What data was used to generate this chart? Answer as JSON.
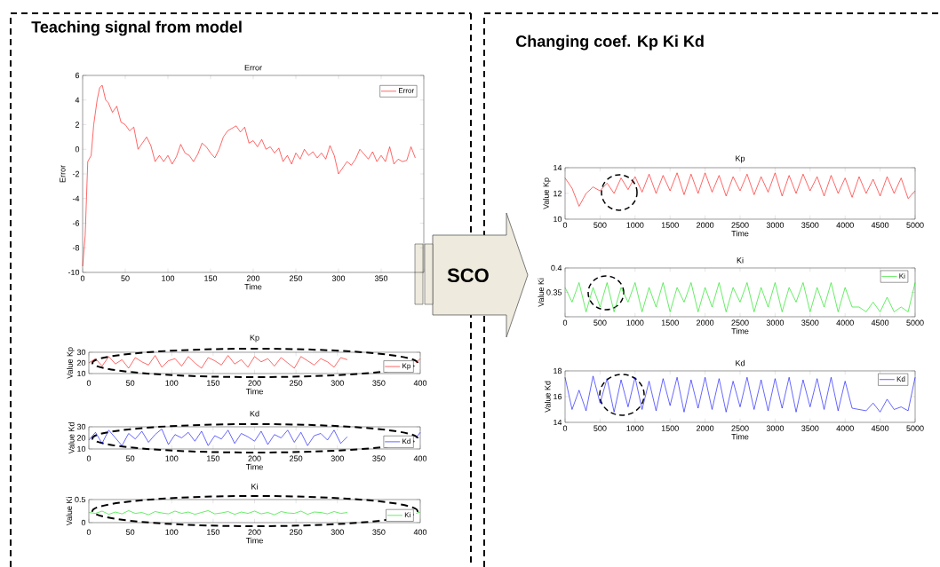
{
  "chart_data": [
    {
      "type": "line",
      "title": "Error",
      "xlabel": "Time",
      "ylabel": "Error",
      "annotations": [
        "Teaching signal from model",
        "SCO"
      ],
      "xlim": [
        0,
        400
      ],
      "ylim": [
        -10,
        6
      ],
      "xticks": [
        0,
        50,
        100,
        150,
        200,
        250,
        300,
        350,
        {
          "value": 400,
          "label": null
        }
      ],
      "yticks": [
        -10,
        -8,
        -6,
        -4,
        -2,
        0,
        2,
        4,
        6
      ],
      "legend": "top right",
      "series": [
        {
          "name": "Error",
          "color": "#ff0000",
          "x": [
            0,
            3,
            6,
            10,
            13,
            17,
            20,
            23,
            27,
            30,
            35,
            40,
            45,
            50,
            55,
            60,
            65,
            70,
            75,
            80,
            85,
            90,
            95,
            100,
            105,
            110,
            115,
            120,
            125,
            130,
            135,
            140,
            145,
            150,
            155,
            160,
            165,
            170,
            175,
            180,
            185,
            190,
            195,
            200,
            205,
            210,
            215,
            220,
            225,
            230,
            235,
            240,
            245,
            250,
            255,
            260,
            265,
            270,
            275,
            280,
            285,
            290,
            295,
            300,
            305,
            310,
            315,
            320,
            325,
            330,
            335,
            340,
            345,
            350,
            355,
            360,
            365,
            370,
            375,
            380,
            385,
            390
          ],
          "values": [
            -9.5,
            -7,
            -1,
            -0.5,
            2,
            4,
            5,
            5.2,
            4,
            3.8,
            3,
            3.5,
            2.2,
            2,
            1.5,
            1.8,
            0,
            0.5,
            1,
            0.3,
            -1,
            -0.5,
            -1,
            -0.5,
            -1.2,
            -0.6,
            0.4,
            -0.3,
            -0.5,
            -1,
            -0.4,
            0.5,
            0.2,
            -0.3,
            -0.7,
            0,
            1,
            1.5,
            1.7,
            1.9,
            1.4,
            1.8,
            0.5,
            0.7,
            0.2,
            0.8,
            0,
            0.2,
            -0.3,
            0.1,
            -1,
            -0.5,
            -1.2,
            -0.3,
            -0.8,
            0,
            -0.5,
            -0.2,
            -0.7,
            -0.3,
            -0.8,
            0.3,
            -0.5,
            -2,
            -1.5,
            -1,
            -1.3,
            -0.8,
            0,
            -0.4,
            -0.8,
            -0.2,
            -1,
            -0.5,
            -1,
            0.2,
            -1.2,
            -0.8,
            -1,
            -0.9,
            0.2,
            -0.7
          ]
        }
      ]
    },
    {
      "type": "line",
      "title": "Kp",
      "xlabel": "Time",
      "ylabel": "Value Kp",
      "xlim": [
        0,
        400
      ],
      "ylim": [
        10,
        30
      ],
      "xticks": [
        0,
        50,
        100,
        150,
        200,
        250,
        300,
        350,
        400
      ],
      "yticks": [
        10,
        20,
        30
      ],
      "legend": "bottom right",
      "series": [
        {
          "name": "Kp",
          "color": "#ff0000",
          "x": [
            0,
            8,
            16,
            24,
            32,
            40,
            48,
            56,
            64,
            72,
            80,
            88,
            96,
            104,
            112,
            120,
            128,
            136,
            144,
            152,
            160,
            168,
            176,
            184,
            192,
            200,
            208,
            216,
            224,
            232,
            240,
            248,
            256,
            264,
            272,
            280,
            288,
            296,
            304,
            312,
            355,
            395,
            400
          ],
          "values": [
            20,
            24,
            17,
            26,
            19,
            23,
            15,
            25,
            21,
            18,
            27,
            16,
            22,
            24,
            17,
            26,
            20,
            15,
            25,
            22,
            18,
            27,
            19,
            23,
            16,
            26,
            21,
            24,
            17,
            25,
            20,
            15,
            26,
            22,
            18,
            24,
            21,
            16,
            25,
            23,
            null,
            20,
            24
          ]
        }
      ]
    },
    {
      "type": "line",
      "title": "Kd",
      "xlabel": "Time",
      "ylabel": "Value Kd",
      "xlim": [
        0,
        400
      ],
      "ylim": [
        10,
        30
      ],
      "xticks": [
        0,
        50,
        100,
        150,
        200,
        250,
        300,
        350,
        400
      ],
      "yticks": [
        10,
        20,
        30
      ],
      "legend": "bottom right",
      "series": [
        {
          "name": "Kd",
          "color": "#0000ff",
          "x": [
            0,
            8,
            16,
            24,
            32,
            40,
            48,
            56,
            64,
            72,
            80,
            88,
            96,
            104,
            112,
            120,
            128,
            136,
            144,
            152,
            160,
            168,
            176,
            184,
            192,
            200,
            208,
            216,
            224,
            232,
            240,
            248,
            256,
            264,
            272,
            280,
            288,
            296,
            304,
            312,
            355,
            395,
            400
          ],
          "values": [
            18,
            25,
            15,
            27,
            20,
            13,
            24,
            19,
            26,
            16,
            23,
            28,
            14,
            23,
            20,
            25,
            17,
            26,
            13,
            22,
            19,
            27,
            15,
            24,
            21,
            17,
            26,
            14,
            23,
            20,
            27,
            16,
            25,
            13,
            22,
            24,
            18,
            27,
            15,
            21,
            null,
            20,
            25
          ]
        }
      ]
    },
    {
      "type": "line",
      "title": "Ki",
      "xlabel": "Time",
      "ylabel": "Value Ki",
      "xlim": [
        0,
        400
      ],
      "ylim": [
        0,
        0.5
      ],
      "xticks": [
        0,
        50,
        100,
        150,
        200,
        250,
        300,
        350,
        400
      ],
      "yticks": [
        0,
        0.5
      ],
      "legend": "bottom right",
      "series": [
        {
          "name": "Ki",
          "color": "#00e000",
          "x": [
            0,
            8,
            16,
            24,
            32,
            40,
            48,
            56,
            64,
            72,
            80,
            88,
            96,
            104,
            112,
            120,
            128,
            136,
            144,
            152,
            160,
            168,
            176,
            184,
            192,
            200,
            208,
            216,
            224,
            232,
            240,
            248,
            256,
            264,
            272,
            280,
            288,
            296,
            304,
            312,
            355,
            395,
            400
          ],
          "values": [
            0.22,
            0.2,
            0.25,
            0.18,
            0.23,
            0.19,
            0.26,
            0.2,
            0.22,
            0.17,
            0.24,
            0.21,
            0.19,
            0.25,
            0.2,
            0.23,
            0.18,
            0.22,
            0.26,
            0.19,
            0.21,
            0.24,
            0.18,
            0.23,
            0.2,
            0.25,
            0.19,
            0.22,
            0.17,
            0.24,
            0.21,
            0.2,
            0.25,
            0.18,
            0.23,
            0.22,
            0.19,
            0.24,
            0.2,
            0.22,
            null,
            0.2,
            0.23
          ]
        }
      ]
    },
    {
      "type": "line",
      "title": "Kp",
      "xlabel": "Time",
      "ylabel": "Value Kp",
      "annotations": [
        "Changing coef. Kp Ki Kd"
      ],
      "xlim": [
        0,
        5000
      ],
      "ylim": [
        10,
        14
      ],
      "xticks": [
        0,
        500,
        1000,
        1500,
        2000,
        2500,
        3000,
        3500,
        4000,
        4500,
        5000
      ],
      "yticks": [
        10,
        12,
        14
      ],
      "series": [
        {
          "color": "#ff0000",
          "x": [
            0,
            100,
            200,
            300,
            400,
            500,
            600,
            700,
            800,
            900,
            1000,
            1100,
            1200,
            1300,
            1400,
            1500,
            1600,
            1700,
            1800,
            1900,
            2000,
            2100,
            2200,
            2300,
            2400,
            2500,
            2600,
            2700,
            2800,
            2900,
            3000,
            3100,
            3200,
            3300,
            3400,
            3500,
            3600,
            3700,
            3800,
            3900,
            4000,
            4100,
            4200,
            4300,
            4400,
            4500,
            4600,
            4700,
            4800,
            4900,
            5000
          ],
          "values": [
            13.2,
            12.4,
            11,
            12,
            12.5,
            12.2,
            12.8,
            12,
            13.2,
            12.3,
            13.3,
            12.1,
            13.5,
            12,
            13.4,
            12.2,
            13.6,
            11.9,
            13.5,
            12,
            13.6,
            12.1,
            13.4,
            11.8,
            13.3,
            12.2,
            13.5,
            11.9,
            13.3,
            12.1,
            13.6,
            11.8,
            13.4,
            12,
            13.5,
            12.2,
            13.3,
            11.8,
            13.4,
            12,
            13.2,
            11.7,
            13.3,
            12,
            13.1,
            11.8,
            13.3,
            12,
            13.2,
            11.6,
            12.2
          ]
        }
      ]
    },
    {
      "type": "line",
      "title": "Ki",
      "xlabel": "Time",
      "ylabel": "Value Ki",
      "xlim": [
        0,
        5000
      ],
      "ylim": [
        0.3,
        0.4
      ],
      "xticks": [
        0,
        500,
        1000,
        1500,
        2000,
        2500,
        3000,
        3500,
        4000,
        4500,
        5000
      ],
      "yticks": [
        {
          "value": 0.3,
          "label": null
        },
        0.35,
        0.4
      ],
      "legend": "top right",
      "series": [
        {
          "name": "Ki",
          "color": "#00e000",
          "x": [
            0,
            100,
            200,
            300,
            400,
            500,
            600,
            700,
            800,
            900,
            1000,
            1100,
            1200,
            1300,
            1400,
            1500,
            1600,
            1700,
            1800,
            1900,
            2000,
            2100,
            2200,
            2300,
            2400,
            2500,
            2600,
            2700,
            2800,
            2900,
            3000,
            3100,
            3200,
            3300,
            3400,
            3500,
            3600,
            3700,
            3800,
            3900,
            4000,
            4100,
            4200,
            4300,
            4400,
            4500,
            4600,
            4700,
            4800,
            4900,
            5000
          ],
          "values": [
            0.36,
            0.33,
            0.37,
            0.31,
            0.36,
            0.32,
            0.37,
            0.31,
            0.36,
            0.33,
            0.37,
            0.31,
            0.36,
            0.32,
            0.37,
            0.31,
            0.36,
            0.33,
            0.37,
            0.31,
            0.36,
            0.32,
            0.37,
            0.31,
            0.36,
            0.33,
            0.37,
            0.31,
            0.36,
            0.32,
            0.37,
            0.31,
            0.36,
            0.33,
            0.37,
            0.31,
            0.36,
            0.32,
            0.37,
            0.31,
            0.36,
            0.32,
            0.32,
            0.31,
            0.33,
            0.31,
            0.34,
            0.31,
            0.32,
            0.31,
            0.37
          ]
        }
      ]
    },
    {
      "type": "line",
      "title": "Kd",
      "xlabel": "Time",
      "ylabel": "Value Kd",
      "xlim": [
        0,
        5000
      ],
      "ylim": [
        14,
        18
      ],
      "xticks": [
        0,
        500,
        1000,
        1500,
        2000,
        2500,
        3000,
        3500,
        4000,
        4500,
        5000
      ],
      "yticks": [
        14,
        16,
        18
      ],
      "legend": "top right",
      "series": [
        {
          "name": "Kd",
          "color": "#0000ff",
          "x": [
            0,
            100,
            200,
            300,
            400,
            500,
            600,
            700,
            800,
            900,
            1000,
            1100,
            1200,
            1300,
            1400,
            1500,
            1600,
            1700,
            1800,
            1900,
            2000,
            2100,
            2200,
            2300,
            2400,
            2500,
            2600,
            2700,
            2800,
            2900,
            3000,
            3100,
            3200,
            3300,
            3400,
            3500,
            3600,
            3700,
            3800,
            3900,
            4000,
            4100,
            4200,
            4300,
            4400,
            4500,
            4600,
            4700,
            4800,
            4900,
            5000
          ],
          "values": [
            17.5,
            15,
            16.5,
            14.9,
            17.6,
            15.5,
            17.4,
            14.8,
            17.3,
            15.2,
            17.5,
            15,
            17.2,
            14.9,
            17.4,
            15.3,
            17.5,
            14.8,
            17.3,
            15.1,
            17.5,
            15,
            17.4,
            14.8,
            17.2,
            15.2,
            17.5,
            15,
            17.3,
            14.9,
            17.4,
            15.1,
            17.5,
            14.8,
            17.3,
            15.2,
            17.4,
            15,
            17.5,
            14.9,
            17.2,
            15.1,
            15,
            14.9,
            15.5,
            14.8,
            15.8,
            15,
            15.2,
            14.9,
            17.5
          ]
        }
      ]
    }
  ]
}
